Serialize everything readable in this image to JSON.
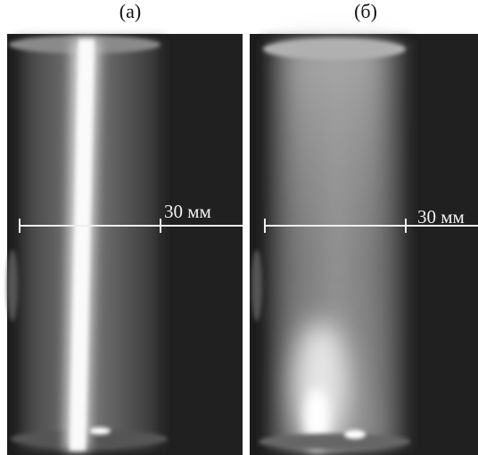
{
  "panels": [
    {
      "label": "(а)",
      "scale_label": "30 мм"
    },
    {
      "label": "(б)",
      "scale_label": "30 мм"
    }
  ]
}
